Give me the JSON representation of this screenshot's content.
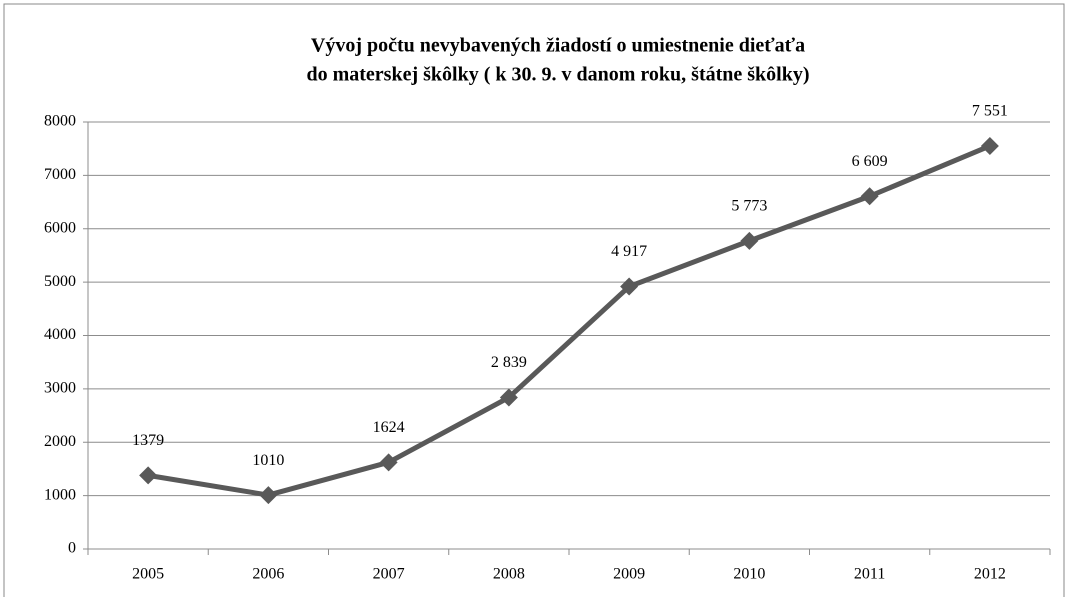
{
  "chart_data": {
    "type": "line",
    "title": [
      "Vývoj počtu  nevybavených žiadostí o  umiestnenie  dieťaťa",
      "do materskej škôlky  ( k 30. 9. v danom roku,  štátne škôlky)"
    ],
    "categories": [
      "2005",
      "2006",
      "2007",
      "2008",
      "2009",
      "2010",
      "2011",
      "2012"
    ],
    "values": [
      1379,
      1010,
      1624,
      2839,
      4917,
      5773,
      6609,
      7551
    ],
    "value_labels": [
      "1379",
      "1010",
      "1624",
      "2 839",
      "4 917",
      "5 773",
      "6 609",
      "7 551"
    ],
    "color": "#595959",
    "ylim": [
      0,
      8000
    ],
    "yticks": [
      0,
      1000,
      2000,
      3000,
      4000,
      5000,
      6000,
      7000,
      8000
    ],
    "grid": true
  }
}
